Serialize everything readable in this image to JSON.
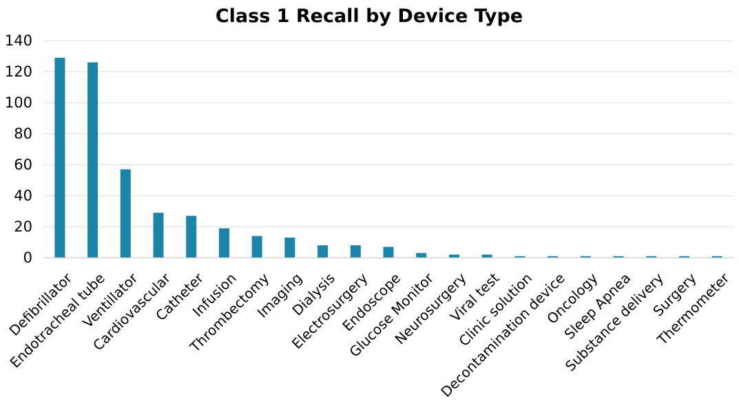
{
  "chart_data": {
    "type": "bar",
    "title": "Class 1 Recall by Device Type",
    "xlabel": "",
    "ylabel": "",
    "ylim": [
      0,
      140
    ],
    "yticks": [
      0,
      20,
      40,
      60,
      80,
      100,
      120,
      140
    ],
    "grid": true,
    "legend": "none",
    "bar_color": "#1a85a8",
    "categories": [
      "Defibrillator",
      "Endotracheal tube",
      "Ventillator",
      "Cardiovascular",
      "Catheter",
      "Infusion",
      "Thrombectomy",
      "Imaging",
      "Dialysis",
      "Electrosurgery",
      "Endoscope",
      "Glucose Monitor",
      "Neurosurgery",
      "Viral test",
      "Clinic solution",
      "Decontamination device",
      "Oncology",
      "Sleep Apnea",
      "Substance delivery",
      "Surgery",
      "Thermometer"
    ],
    "values": [
      129,
      126,
      57,
      29,
      27,
      19,
      14,
      13,
      8,
      8,
      7,
      3,
      2,
      2,
      1,
      1,
      1,
      1,
      1,
      1,
      1
    ]
  }
}
